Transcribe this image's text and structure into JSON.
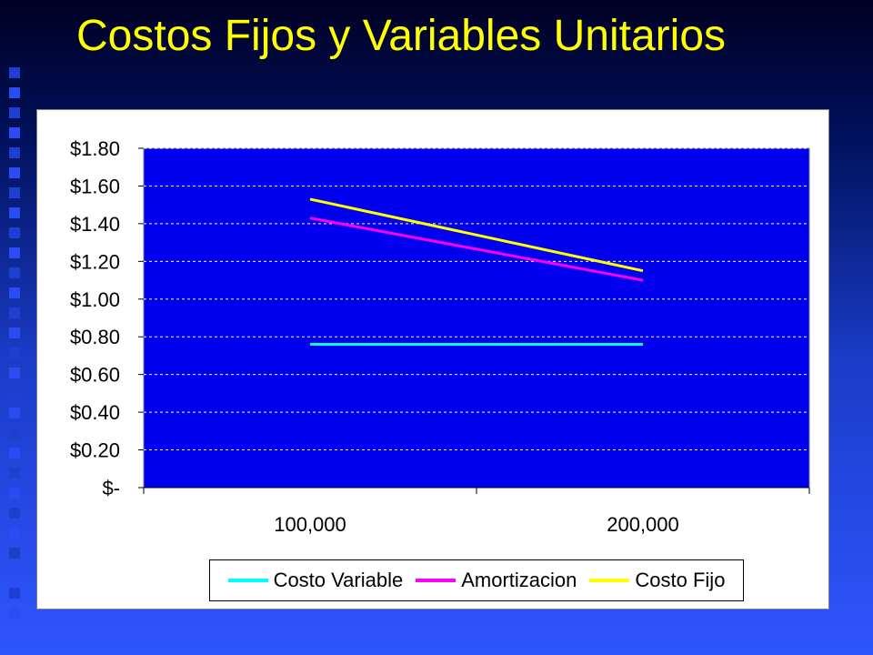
{
  "slide": {
    "title": "Costos Fijos y Variables Unitarios"
  },
  "colors": {
    "plot_background": "#0000ee",
    "gridline": "#ffffff",
    "title": "#ffff00",
    "costo_variable": "#00ffff",
    "amortizacion": "#ff00ff",
    "costo_fijo": "#ffff00"
  },
  "chart_data": {
    "type": "line",
    "title": "",
    "xlabel": "",
    "ylabel": "",
    "categories": [
      "100,000",
      "200,000"
    ],
    "ylim": [
      0,
      1.8
    ],
    "yticks": [
      0,
      0.2,
      0.4,
      0.6,
      0.8,
      1.0,
      1.2,
      1.4,
      1.6,
      1.8
    ],
    "ytick_labels": [
      "$-",
      "$0.20",
      "$0.40",
      "$0.60",
      "$0.80",
      "$1.00",
      "$1.20",
      "$1.40",
      "$1.60",
      "$1.80"
    ],
    "grid": "horizontal dashed",
    "legend_position": "bottom",
    "series": [
      {
        "name": "Costo Variable",
        "values": [
          0.76,
          0.76
        ],
        "color": "#00ffff"
      },
      {
        "name": "Amortizacion",
        "values": [
          1.43,
          1.1
        ],
        "color": "#ff00ff"
      },
      {
        "name": "Costo Fijo",
        "values": [
          1.53,
          1.15
        ],
        "color": "#ffff00"
      }
    ]
  }
}
